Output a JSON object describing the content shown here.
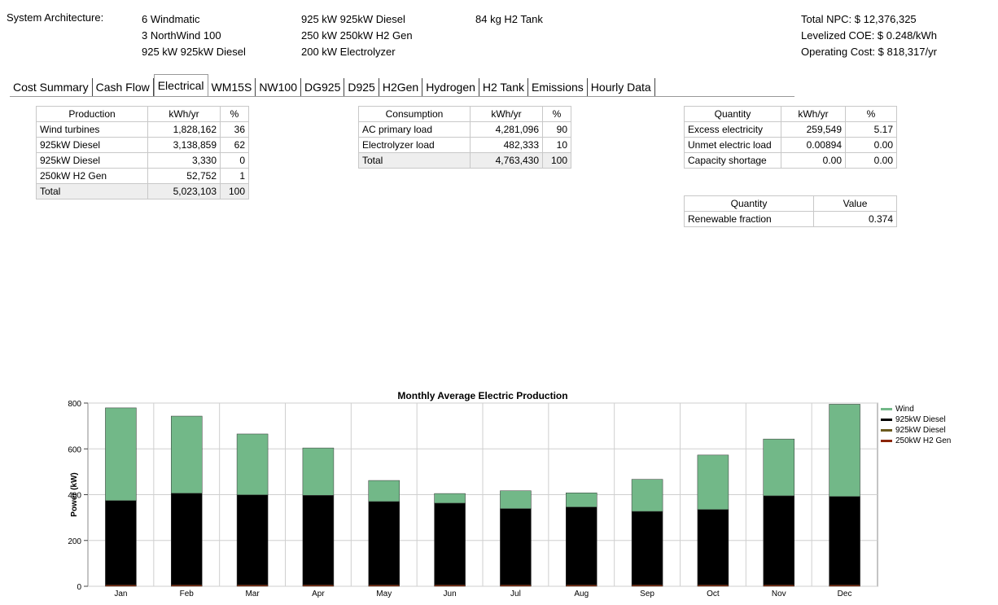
{
  "architecture": {
    "label": "System Architecture:",
    "col1": [
      "6 Windmatic",
      "3 NorthWind 100",
      "925 kW 925kW Diesel"
    ],
    "col2": [
      "925 kW 925kW Diesel",
      "250 kW 250kW H2 Gen",
      "200 kW Electrolyzer"
    ],
    "col3": [
      "84 kg H2 Tank"
    ]
  },
  "summary": {
    "npc": "Total NPC: $ 12,376,325",
    "coe": "Levelized COE: $ 0.248/kWh",
    "operating": "Operating Cost: $ 818,317/yr"
  },
  "tabs": [
    {
      "label": "Cost Summary",
      "name": "tab-cost-summary",
      "active": false
    },
    {
      "label": "Cash Flow",
      "name": "tab-cash-flow",
      "active": false
    },
    {
      "label": "Electrical",
      "name": "tab-electrical",
      "active": true
    },
    {
      "label": "WM15S",
      "name": "tab-wm15s",
      "active": false
    },
    {
      "label": "NW100",
      "name": "tab-nw100",
      "active": false
    },
    {
      "label": "DG925",
      "name": "tab-dg925",
      "active": false
    },
    {
      "label": "D925",
      "name": "tab-d925",
      "active": false
    },
    {
      "label": "H2Gen",
      "name": "tab-h2gen",
      "active": false
    },
    {
      "label": "Hydrogen",
      "name": "tab-hydrogen",
      "active": false
    },
    {
      "label": "H2 Tank",
      "name": "tab-h2-tank",
      "active": false
    },
    {
      "label": "Emissions",
      "name": "tab-emissions",
      "active": false
    },
    {
      "label": "Hourly Data",
      "name": "tab-hourly-data",
      "active": false
    }
  ],
  "production": {
    "headers": [
      "Production",
      "kWh/yr",
      "%"
    ],
    "rows": [
      [
        "Wind turbines",
        "1,828,162",
        "36"
      ],
      [
        "925kW Diesel",
        "3,138,859",
        "62"
      ],
      [
        "925kW Diesel",
        "3,330",
        "0"
      ],
      [
        "250kW H2 Gen",
        "52,752",
        "1"
      ]
    ],
    "total": [
      "Total",
      "5,023,103",
      "100"
    ]
  },
  "consumption": {
    "headers": [
      "Consumption",
      "kWh/yr",
      "%"
    ],
    "rows": [
      [
        "AC primary load",
        "4,281,096",
        "90"
      ],
      [
        "Electrolyzer load",
        "482,333",
        "10"
      ]
    ],
    "total": [
      "Total",
      "4,763,430",
      "100"
    ]
  },
  "quantity": {
    "headers": [
      "Quantity",
      "kWh/yr",
      "%"
    ],
    "rows": [
      [
        "Excess electricity",
        "259,549",
        "5.17"
      ],
      [
        "Unmet electric load",
        "0.00894",
        "0.00"
      ],
      [
        "Capacity shortage",
        "0.00",
        "0.00"
      ]
    ]
  },
  "renewable": {
    "headers": [
      "Quantity",
      "Value"
    ],
    "rows": [
      [
        "Renewable fraction",
        "0.374"
      ]
    ]
  },
  "chart_data": {
    "type": "bar",
    "stacked": true,
    "title": "Monthly Average Electric Production",
    "ylabel": "Power (kW)",
    "xlabel": "",
    "ylim": [
      0,
      800
    ],
    "yticks": [
      0,
      200,
      400,
      600,
      800
    ],
    "grid": true,
    "legend_position": "right",
    "categories": [
      "Jan",
      "Feb",
      "Mar",
      "Apr",
      "May",
      "Jun",
      "Jul",
      "Aug",
      "Sep",
      "Oct",
      "Nov",
      "Dec"
    ],
    "series": [
      {
        "name": "250kW H2 Gen",
        "color": "#8b2500",
        "values": [
          6,
          6,
          6,
          6,
          6,
          6,
          6,
          6,
          6,
          6,
          6,
          6
        ]
      },
      {
        "name": "925kW Diesel",
        "color": "#6b5a1e",
        "values": [
          0,
          0,
          0,
          0,
          0,
          0,
          0,
          0,
          0,
          0,
          0,
          0
        ]
      },
      {
        "name": "925kW Diesel",
        "color": "#000000",
        "values": [
          368,
          400,
          393,
          391,
          364,
          357,
          333,
          340,
          321,
          329,
          389,
          386
        ]
      },
      {
        "name": "Wind",
        "color": "#72b888",
        "values": [
          405,
          337,
          266,
          207,
          92,
          42,
          78,
          62,
          140,
          238,
          248,
          403
        ]
      }
    ],
    "legend_order": [
      {
        "name": "Wind",
        "color": "#72b888"
      },
      {
        "name": "925kW Diesel",
        "color": "#000000"
      },
      {
        "name": "925kW Diesel",
        "color": "#6b5a1e"
      },
      {
        "name": "250kW H2 Gen",
        "color": "#8b2500"
      }
    ]
  }
}
